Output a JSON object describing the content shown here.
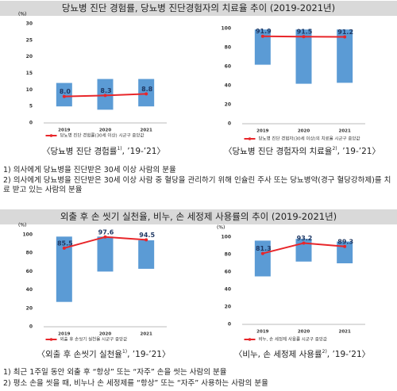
{
  "sections": [
    {
      "title": "당뇨병 진단 경험률, 당뇨병 진단경험자의 치료율 추이 (2019-2021년)",
      "notes": [
        "1) 의사에게 당뇨병을 진단받은 30세 이상 사람의 분율",
        "2) 의사에게 당뇨병을 진단받은 30세 이상 사람 중 혈당을 관리하기 위해 인슐린 주사 또는 당뇨병약(경구 혈당강하제)를 치료 받고 있는 사람의 분율"
      ]
    },
    {
      "title": "외출 후 손 씻기 실천율, 비누, 손 세정제 사용률의 추이 (2019-2021년)",
      "notes": [
        "1) 최근 1주일 동안 외출 후 “항상” 또는 “자주” 손을 씻는 사람의 분율",
        "2) 평소 손을 씻을 때, 비누나 손 세정제를 “항상” 또는 “자주” 사용하는 사람의 분율"
      ]
    }
  ],
  "chart_data": [
    {
      "type": "range",
      "ylabel": "(%)",
      "categories": [
        "2019",
        "2020",
        "2021"
      ],
      "ranges": {
        "color": "#5b9bd5",
        "low": [
          5,
          4,
          5
        ],
        "high": [
          12.1,
          13.3,
          13.3
        ]
      },
      "series": [
        {
          "name": "당뇨병 진단 경험률(30세 이상) 시군구 중앙값",
          "color": "#e8262a",
          "values": [
            8.0,
            8.3,
            8.8
          ],
          "value_labels": [
            "8.0",
            "8.3",
            "8.8"
          ]
        }
      ],
      "ylim": [
        0,
        30
      ],
      "yticks": [
        0,
        5,
        10,
        15,
        20,
        25,
        30
      ],
      "caption": {
        "text": "〈당뇨병 진단 경험률",
        "sup": "1)",
        "tail": ", ’19-’21〉"
      }
    },
    {
      "type": "range",
      "categories": [
        "2019",
        "2020",
        "2021"
      ],
      "ranges": {
        "color": "#5b9bd5",
        "low": [
          62,
          42,
          43
        ],
        "high": [
          99,
          99,
          99
        ]
      },
      "series": [
        {
          "name": "당뇨병 진단 경험자(30세 이상)의 치료율 시군구 중앙값",
          "color": "#e8262a",
          "values": [
            91.9,
            91.5,
            91.2
          ]
        }
      ],
      "ylim": [
        0,
        100
      ],
      "yticks": [
        0,
        20,
        40,
        60,
        80,
        100
      ],
      "caption": {
        "text": "〈당뇨병 진단 경험자의 치료율",
        "sup": "2)",
        "tail": ", ’19-’21〉"
      }
    },
    {
      "type": "range",
      "ylabel": "(%)",
      "categories": [
        "2019",
        "2020",
        "2021"
      ],
      "ranges": {
        "color": "#5b9bd5",
        "low": [
          27,
          60,
          63
        ],
        "high": [
          98,
          98,
          94
        ]
      },
      "series": [
        {
          "name": "외출 후 손씻기 실천율 시군구 중앙값",
          "color": "#e8262a",
          "values": [
            85.5,
            97.6,
            94.5
          ]
        }
      ],
      "ylim": [
        0,
        100
      ],
      "yticks": [
        0,
        20,
        40,
        60,
        80,
        100
      ],
      "caption": {
        "text": "〈외출 후 손씻기 실천율",
        "sup": "1)",
        "tail": ", ’19-’21〉"
      }
    },
    {
      "type": "range",
      "ylabel": "(%)",
      "categories": [
        "2019",
        "2020",
        "2021"
      ],
      "ranges": {
        "color": "#5b9bd5",
        "low": [
          55,
          72,
          70
        ],
        "high": [
          96,
          98,
          95
        ]
      },
      "series": [
        {
          "name": "비누, 손 세정제 사용률 시군구 중앙값",
          "color": "#e8262a",
          "values": [
            81.3,
            93.2,
            89.3
          ]
        }
      ],
      "ylim": [
        0,
        100
      ],
      "yticks": [
        0,
        20,
        40,
        60,
        80,
        100
      ],
      "caption": {
        "text": "〈비누, 손 세정제 사용률",
        "sup": "2)",
        "tail": ", ’19-’21〉"
      }
    }
  ]
}
